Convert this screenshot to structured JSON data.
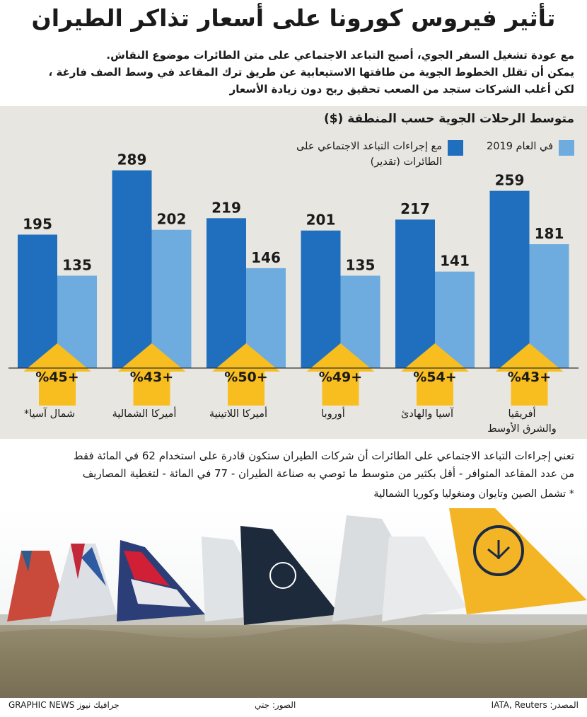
{
  "header": {
    "title": "تأثير فيروس كورونا على أسعار تذاكر الطيران"
  },
  "intro": {
    "lines": [
      "مع عودة تشغيل السفر الجوي، أصبح التباعد الاجتماعي على متن الطائرات موضوع النقاش.",
      "يمكن أن تقلل الخطوط الجوية من طاقتها الاستيعابية عن طريق ترك المقاعد في وسط الصف فارغة ،",
      "لكن أغلب الشركات ستجد من الصعب تحقيق ربح دون زيادة الأسعار"
    ]
  },
  "chart_data": {
    "type": "bar",
    "title": "متوسط الرحلات الجوية حسب المنطقة ($)",
    "categories": [
      "شمال آسيا*",
      "أميركا الشمالية",
      "أميركا اللاتينية",
      "أوروبا",
      "آسيا والهادئ",
      "أفريقيا والشرق الأوسط"
    ],
    "series": [
      {
        "name": "مع إجراءات التباعد الاجتماعي على الطائرات (تقدير)",
        "values": [
          195,
          289,
          219,
          201,
          217,
          259
        ],
        "color": "#1f6fbe"
      },
      {
        "name": "في العام 2019",
        "values": [
          135,
          202,
          146,
          135,
          141,
          181
        ],
        "color": "#6eabde"
      }
    ],
    "increase_labels": [
      "%45+",
      "%43+",
      "%50+",
      "%49+",
      "%54+",
      "%43+"
    ],
    "ylim": [
      0,
      300
    ],
    "grid": false,
    "legend_position": "top-right",
    "arrow_color": "#f8bd1f"
  },
  "regions": {
    "r0": "شمال آسيا*",
    "r1": "أميركا الشمالية",
    "r2": "أميركا اللاتينية",
    "r3": "أوروبا",
    "r4": "آسيا والهادئ",
    "r5_line1": "أفريقيا",
    "r5_line2": "والشرق الأوسط"
  },
  "legend": {
    "year2019": "في العام 2019",
    "social_distancing": "مع إجراءات التباعد الاجتماعي على الطائرات (تقدير)"
  },
  "notes": {
    "main_lines": [
      "تعني إجراءات التباعد الاجتماعي على الطائرات أن شركات الطيران ستكون قادرة على استخدام 62 في المائة فقط",
      "من عدد المقاعد المتوافر - أقل بكثير من متوسط ما توصي به صناعة الطيران - 77 في المائة - لتغطية المصاريف"
    ],
    "asterisk": "* تشمل الصين وتايوان ومنغوليا وكوريا الشمالية"
  },
  "footer": {
    "source": "المصدر: IATA, Reuters",
    "photos": "الصور: جتي",
    "credit": "GRAPHIC NEWS جرافيك نيوز"
  },
  "colors": {
    "background_panel": "#e8e6e1",
    "bar_dark": "#1f6fbe",
    "bar_light": "#6eabde",
    "arrow": "#f8bd1f"
  }
}
